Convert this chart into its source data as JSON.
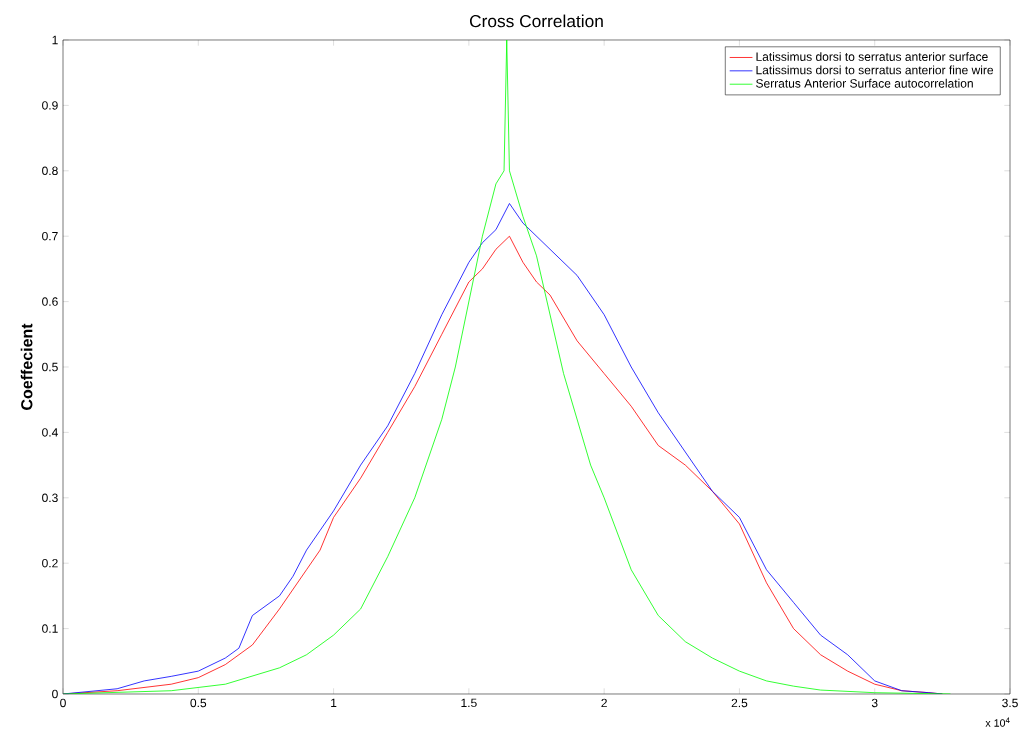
{
  "chart_data": {
    "type": "line",
    "title": "Cross Correlation",
    "ylabel": "Coeffecient",
    "annotations": [
      "x 10$^{4}$"
    ],
    "xlim": [
      0,
      3.5
    ],
    "ylim": [
      0,
      1
    ],
    "xticks": [
      0,
      0.5,
      1,
      1.5,
      2,
      2.5,
      3,
      3.5
    ],
    "yticks": [
      0,
      0.1,
      0.2,
      0.3,
      0.4,
      0.5,
      0.6,
      0.7,
      0.8,
      0.9,
      1
    ],
    "grid": false,
    "legend": "top right",
    "line_style": "solid",
    "series": [
      {
        "name": "Latissimus dorsi to serratus anterior surface",
        "color": "#ff0000",
        "x": [
          0,
          0.2,
          0.4,
          0.5,
          0.6,
          0.7,
          0.8,
          0.9,
          0.95,
          1,
          1.1,
          1.2,
          1.3,
          1.4,
          1.5,
          1.55,
          1.6,
          1.65,
          1.7,
          1.75,
          1.8,
          1.9,
          2,
          2.1,
          2.2,
          2.3,
          2.4,
          2.5,
          2.6,
          2.7,
          2.8,
          2.9,
          3,
          3.1,
          3.2,
          3.25
        ],
        "values": [
          0,
          0.005,
          0.015,
          0.025,
          0.045,
          0.075,
          0.13,
          0.19,
          0.22,
          0.27,
          0.33,
          0.4,
          0.47,
          0.55,
          0.63,
          0.65,
          0.68,
          0.7,
          0.66,
          0.63,
          0.61,
          0.54,
          0.49,
          0.44,
          0.38,
          0.35,
          0.31,
          0.26,
          0.17,
          0.1,
          0.06,
          0.035,
          0.015,
          0.005,
          0.002,
          0
        ]
      },
      {
        "name": "Latissimus dorsi to serratus anterior fine wire",
        "color": "#0000ff",
        "x": [
          0,
          0.2,
          0.3,
          0.4,
          0.5,
          0.6,
          0.65,
          0.7,
          0.8,
          0.85,
          0.9,
          0.95,
          1,
          1.1,
          1.2,
          1.3,
          1.4,
          1.5,
          1.55,
          1.6,
          1.65,
          1.7,
          1.8,
          1.9,
          2,
          2.1,
          2.2,
          2.3,
          2.4,
          2.5,
          2.6,
          2.7,
          2.8,
          2.9,
          3,
          3.1,
          3.2,
          3.25
        ],
        "values": [
          0,
          0.008,
          0.02,
          0.027,
          0.035,
          0.055,
          0.07,
          0.12,
          0.15,
          0.18,
          0.22,
          0.25,
          0.28,
          0.35,
          0.41,
          0.49,
          0.58,
          0.66,
          0.69,
          0.71,
          0.75,
          0.72,
          0.68,
          0.64,
          0.58,
          0.5,
          0.43,
          0.37,
          0.31,
          0.27,
          0.19,
          0.14,
          0.09,
          0.06,
          0.02,
          0.005,
          0.002,
          0
        ]
      },
      {
        "name": "Serratus Anterior Surface autocorrelation",
        "color": "#00ff00",
        "x": [
          0,
          0.4,
          0.6,
          0.8,
          0.9,
          1,
          1.1,
          1.2,
          1.3,
          1.4,
          1.45,
          1.5,
          1.55,
          1.6,
          1.63,
          1.64,
          1.65,
          1.7,
          1.75,
          1.8,
          1.85,
          1.9,
          1.95,
          2,
          2.1,
          2.2,
          2.3,
          2.4,
          2.5,
          2.6,
          2.7,
          2.8,
          3,
          3.28
        ],
        "values": [
          0,
          0.005,
          0.015,
          0.04,
          0.06,
          0.09,
          0.13,
          0.21,
          0.3,
          0.42,
          0.5,
          0.6,
          0.7,
          0.78,
          0.8,
          1.0,
          0.8,
          0.73,
          0.67,
          0.58,
          0.49,
          0.42,
          0.35,
          0.3,
          0.19,
          0.12,
          0.08,
          0.055,
          0.035,
          0.02,
          0.012,
          0.006,
          0.002,
          0
        ]
      }
    ]
  }
}
